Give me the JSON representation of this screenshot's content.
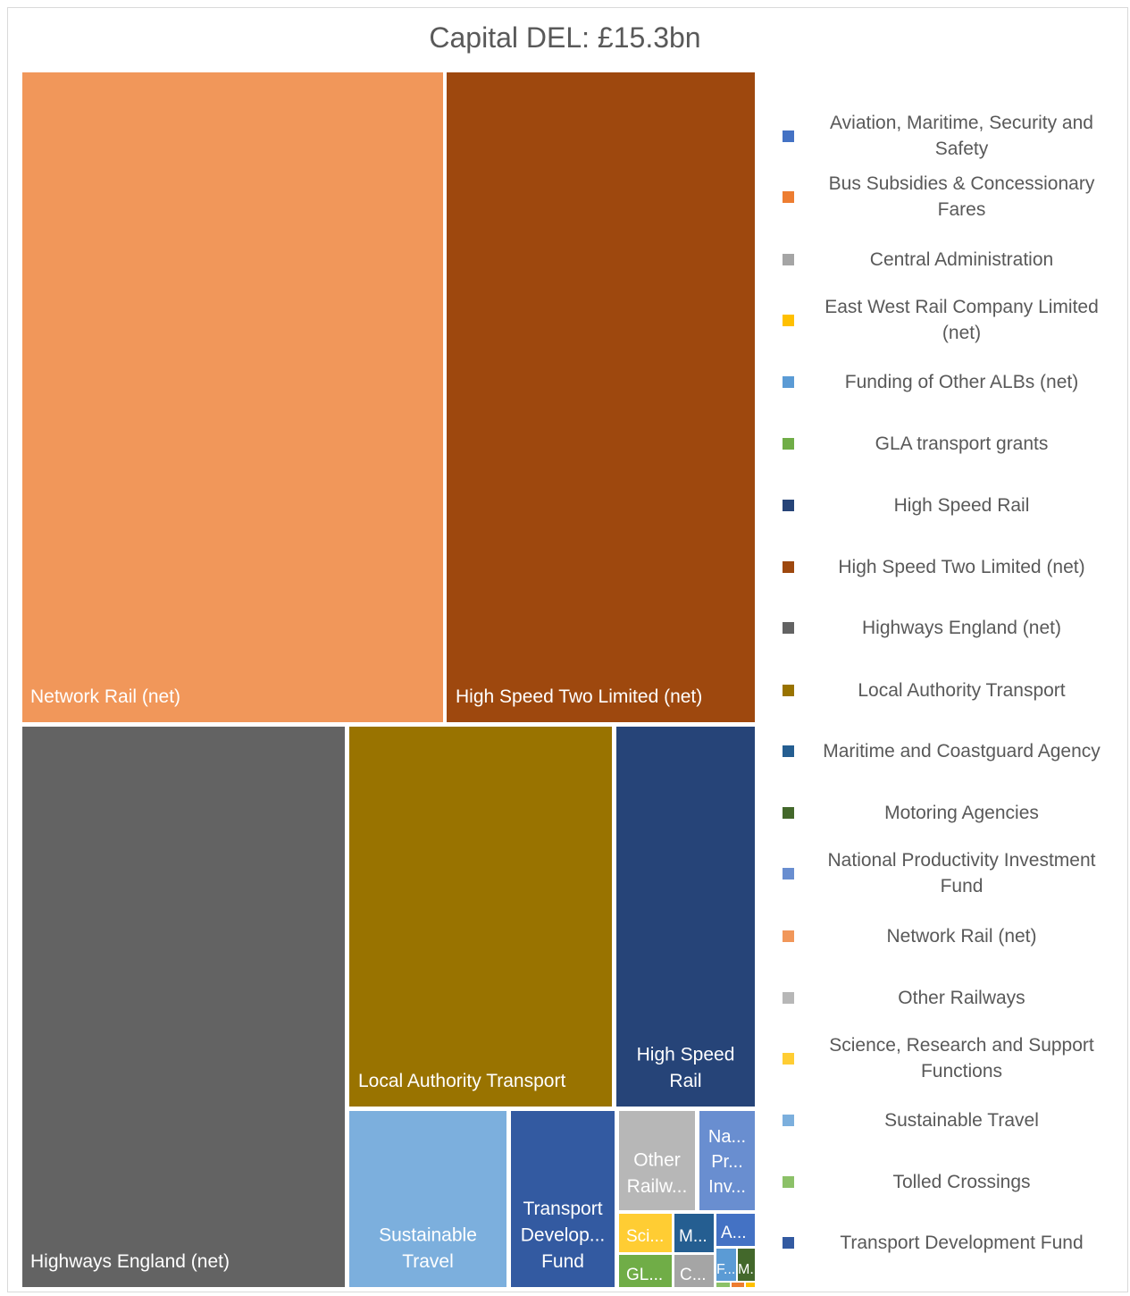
{
  "chart_data": {
    "type": "treemap",
    "title": "Capital DEL: £15.3bn",
    "legend_position": "right",
    "categories": [
      {
        "name": "Aviation, Maritime, Security and Safety",
        "color": "#4472C4"
      },
      {
        "name": "Bus Subsidies & Concessionary Fares",
        "color": "#ED7D31"
      },
      {
        "name": "Central Administration",
        "color": "#A5A5A5"
      },
      {
        "name": "East West Rail Company Limited (net)",
        "color": "#FFC000"
      },
      {
        "name": "Funding of Other ALBs (net)",
        "color": "#5B9BD5"
      },
      {
        "name": "GLA transport grants",
        "color": "#70AD47"
      },
      {
        "name": "High Speed Rail",
        "color": "#264478"
      },
      {
        "name": "High Speed Two Limited (net)",
        "color": "#9E480E"
      },
      {
        "name": "Highways England (net)",
        "color": "#636363"
      },
      {
        "name": "Local Authority Transport",
        "color": "#997300"
      },
      {
        "name": "Maritime and Coastguard Agency",
        "color": "#255E91"
      },
      {
        "name": "Motoring Agencies",
        "color": "#43682B"
      },
      {
        "name": "National Productivity Investment Fund",
        "color": "#698ED0"
      },
      {
        "name": "Network Rail (net)",
        "color": "#F1975A"
      },
      {
        "name": "Other Railways",
        "color": "#B7B7B7"
      },
      {
        "name": "Science, Research and Support Functions",
        "color": "#FFCD33"
      },
      {
        "name": "Sustainable Travel",
        "color": "#7CAFDD"
      },
      {
        "name": "Tolled Crossings",
        "color": "#8CC168"
      },
      {
        "name": "Transport Development Fund",
        "color": "#335AA1"
      }
    ],
    "tiles": [
      {
        "name": "Network Rail (net)",
        "label": "Network Rail (net)",
        "relative_value": 0.2764,
        "color": "#F1975A"
      },
      {
        "name": "High Speed Two Limited (net)",
        "label": "High Speed Two Limited (net)",
        "relative_value": 0.2026,
        "color": "#9E480E"
      },
      {
        "name": "Highways England (net)",
        "label": "Highways England (net)",
        "relative_value": 0.1825,
        "color": "#636363"
      },
      {
        "name": "Local Authority Transport",
        "label": "Local Authority Transport",
        "relative_value": 0.0934,
        "color": "#997300"
      },
      {
        "name": "High Speed Rail",
        "label": "High Speed Rail",
        "relative_value": 0.0492,
        "color": "#264478"
      },
      {
        "name": "Sustainable Travel",
        "label": "Sustainable Travel",
        "relative_value": 0.0324,
        "color": "#7CAFDD"
      },
      {
        "name": "Transport Development Fund",
        "label": "Transport Develop... Fund",
        "relative_value": 0.028,
        "color": "#335AA1"
      },
      {
        "name": "Other Railways",
        "label": "Other Railw...",
        "relative_value": 0.0132,
        "color": "#B7B7B7"
      },
      {
        "name": "National Productivity Investment Fund",
        "label": "Na... Pr... Inv...",
        "relative_value": 0.0098,
        "color": "#698ED0"
      },
      {
        "name": "Science, Research and Support Functions",
        "label": "Sci...",
        "relative_value": 0.0041,
        "color": "#FFCD33"
      },
      {
        "name": "GLA transport grants",
        "label": "GL...",
        "relative_value": 0.0041,
        "color": "#70AD47"
      },
      {
        "name": "Maritime and Coastguard Agency",
        "label": "M...",
        "relative_value": 0.0026,
        "color": "#255E91"
      },
      {
        "name": "Central Administration",
        "label": "C...",
        "relative_value": 0.0026,
        "color": "#A5A5A5"
      },
      {
        "name": "Aviation, Maritime, Security and Safety",
        "label": "A...",
        "relative_value": 0.0023,
        "color": "#4472C4"
      },
      {
        "name": "Funding of Other ALBs (net)",
        "label": "F...",
        "relative_value": 0.0012,
        "color": "#5B9BD5"
      },
      {
        "name": "Motoring Agencies",
        "label": "M...",
        "relative_value": 0.001,
        "color": "#43682B"
      },
      {
        "name": "Tolled Crossings",
        "label": "",
        "relative_value": 0.0002,
        "color": "#8CC168"
      },
      {
        "name": "Bus Subsidies & Concessionary Fares",
        "label": "",
        "relative_value": 0.0002,
        "color": "#ED7D31"
      },
      {
        "name": "East West Rail Company Limited (net)",
        "label": "",
        "relative_value": 0.0002,
        "color": "#FFC000"
      }
    ]
  }
}
